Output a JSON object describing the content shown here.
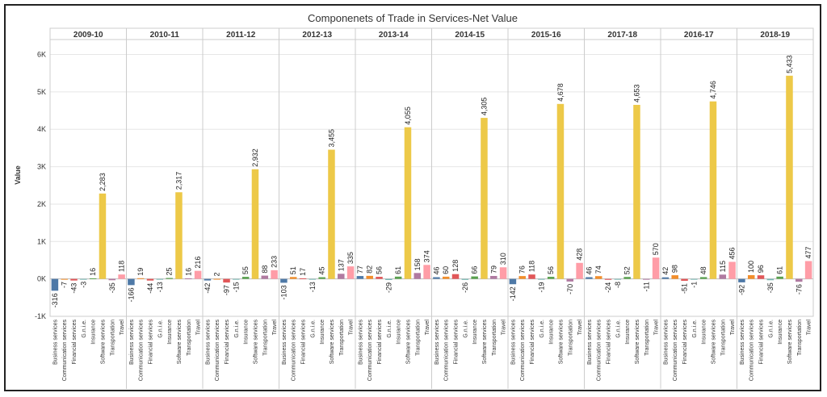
{
  "chart_data": {
    "type": "bar",
    "title": "Componenets of Trade in Services-Net Value",
    "ylabel": "Value",
    "xlabel": "",
    "ylim": [
      -1000,
      6400
    ],
    "y_ticks": [
      {
        "value": -1000,
        "label": "-1K"
      },
      {
        "value": 0,
        "label": "0K"
      },
      {
        "value": 1000,
        "label": "1K"
      },
      {
        "value": 2000,
        "label": "2K"
      },
      {
        "value": 3000,
        "label": "3K"
      },
      {
        "value": 4000,
        "label": "4K"
      },
      {
        "value": 5000,
        "label": "5K"
      },
      {
        "value": 6000,
        "label": "6K"
      }
    ],
    "grid": true,
    "categories": [
      "Business services",
      "Communication services",
      "Financial services",
      "G.n.i.e.",
      "Insurance",
      "Software services",
      "Transportation",
      "Travel"
    ],
    "category_colors": [
      "#4e79a7",
      "#f28e2b",
      "#e15759",
      "#76b7b2",
      "#59a14f",
      "#edc948",
      "#b07aa1",
      "#ff9da7"
    ],
    "panels": [
      {
        "name": "2009-10",
        "values": [
          -316,
          -7,
          -43,
          -3,
          16,
          2283,
          -35,
          118
        ],
        "labels": [
          "-316",
          "-7",
          "-43",
          "-3",
          "16",
          "2,283",
          "-35",
          "118"
        ]
      },
      {
        "name": "2010-11",
        "values": [
          -166,
          19,
          -44,
          -13,
          25,
          2317,
          16,
          216
        ],
        "labels": [
          "-166",
          "19",
          "-44",
          "-13",
          "25",
          "2,317",
          "16",
          "216"
        ]
      },
      {
        "name": "2011-12",
        "values": [
          -42,
          2,
          -97,
          -15,
          55,
          2932,
          88,
          233
        ],
        "labels": [
          "-42",
          "2",
          "-97",
          "-15",
          "55",
          "2,932",
          "88",
          "233"
        ]
      },
      {
        "name": "2012-13",
        "values": [
          -103,
          51,
          17,
          -13,
          45,
          3455,
          137,
          335
        ],
        "labels": [
          "-103",
          "51",
          "17",
          "-13",
          "45",
          "3,455",
          "137",
          "335"
        ]
      },
      {
        "name": "2013-14",
        "values": [
          77,
          82,
          56,
          -29,
          61,
          4055,
          158,
          374
        ],
        "labels": [
          "77",
          "82",
          "56",
          "-29",
          "61",
          "4,055",
          "158",
          "374"
        ]
      },
      {
        "name": "2014-15",
        "values": [
          46,
          60,
          128,
          -26,
          66,
          4305,
          79,
          310
        ],
        "labels": [
          "46",
          "60",
          "128",
          "-26",
          "66",
          "4,305",
          "79",
          "310"
        ]
      },
      {
        "name": "2015-16",
        "values": [
          -142,
          76,
          118,
          -19,
          56,
          4678,
          -70,
          428
        ],
        "labels": [
          "-142",
          "76",
          "118",
          "-19",
          "56",
          "4,678",
          "-70",
          "428"
        ]
      },
      {
        "name": "2017-18",
        "values": [
          46,
          74,
          -24,
          -8,
          52,
          4653,
          -11,
          570
        ],
        "labels": [
          "46",
          "74",
          "-24",
          "-8",
          "52",
          "4,653",
          "-11",
          "570"
        ]
      },
      {
        "name": "2016-17",
        "values": [
          42,
          98,
          -51,
          -1,
          48,
          4746,
          115,
          456
        ],
        "labels": [
          "42",
          "98",
          "-51",
          "-1",
          "48",
          "4,746",
          "115",
          "456"
        ]
      },
      {
        "name": "2018-19",
        "values": [
          -92,
          100,
          96,
          -35,
          61,
          5433,
          -76,
          477
        ],
        "labels": [
          "-92",
          "100",
          "96",
          "-35",
          "61",
          "5,433",
          "-76",
          "477"
        ]
      }
    ]
  }
}
